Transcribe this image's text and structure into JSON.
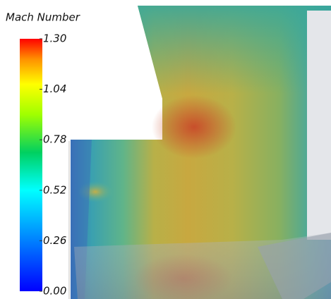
{
  "colorbar": {
    "title": "Mach Number",
    "lim": [
      0,
      1.3
    ],
    "ticks": [
      {
        "value": 1.3,
        "label": "1.30"
      },
      {
        "value": 1.04,
        "label": "1.04"
      },
      {
        "value": 0.78,
        "label": "0.78"
      },
      {
        "value": 0.52,
        "label": "0.52"
      },
      {
        "value": 0.26,
        "label": "0.26"
      },
      {
        "value": 0,
        "label": "0.00"
      }
    ]
  }
}
